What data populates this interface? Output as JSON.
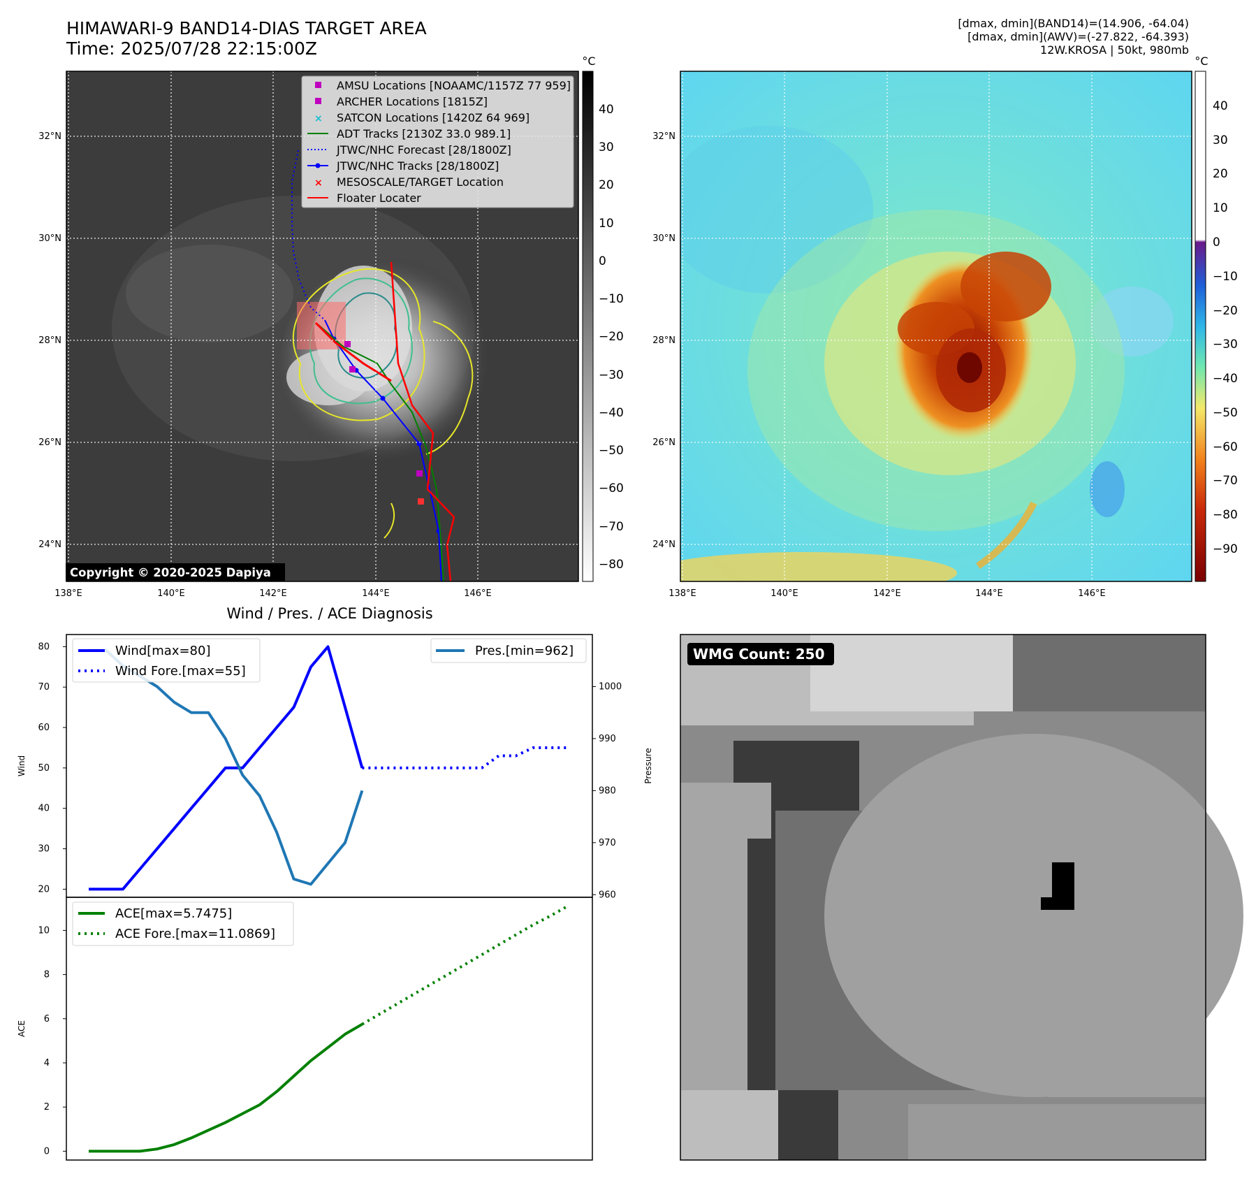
{
  "header": {
    "title_line1": "HIMAWARI-9 BAND14-DIAS TARGET AREA",
    "title_line2": "Time: 2025/07/28 22:15:00Z",
    "info_line1": "[dmax, dmin](BAND14)=(14.906, -64.04)",
    "info_line2": "[dmax, dmin](AWV)=(-27.822, -64.393)",
    "info_line3": "12W.KROSA | 50kt, 980mb"
  },
  "maps": {
    "lat_ticks": [
      "24°N",
      "26°N",
      "28°N",
      "30°N",
      "32°N"
    ],
    "lon_ticks": [
      "138°E",
      "140°E",
      "142°E",
      "144°E",
      "146°E"
    ],
    "unit": "°C",
    "left_colorbar_ticks": [
      "40",
      "30",
      "20",
      "10",
      "0",
      "−10",
      "−20",
      "−30",
      "−40",
      "−50",
      "−60",
      "−70",
      "−80"
    ],
    "right_colorbar_ticks": [
      "40",
      "30",
      "20",
      "10",
      "0",
      "−10",
      "−20",
      "−30",
      "−40",
      "−50",
      "−60",
      "−70",
      "−80",
      "−90"
    ],
    "copyright": "Copyright © 2020-2025 Dapiya",
    "legend": [
      {
        "label": "AMSU Locations [NOAAMC/1157Z 77 959]",
        "marker": "square",
        "color": "#bf00bf"
      },
      {
        "label": "ARCHER Locations [1815Z]",
        "marker": "square",
        "color": "#bf00bf"
      },
      {
        "label": "SATCON Locations [1420Z 64 969]",
        "marker": "x",
        "color": "#17becf"
      },
      {
        "label": "ADT Tracks [2130Z 33.0 989.1]",
        "marker": "line",
        "color": "#008000"
      },
      {
        "label": "JTWC/NHC Forecast [28/1800Z]",
        "marker": "dotted",
        "color": "#0000ff"
      },
      {
        "label": "JTWC/NHC Tracks [28/1800Z]",
        "marker": "line-dot",
        "color": "#0000ff"
      },
      {
        "label": "MESOSCALE/TARGET Location",
        "marker": "x",
        "color": "#ff0000"
      },
      {
        "label": "Floater Locater",
        "marker": "line",
        "color": "#ff0000"
      }
    ]
  },
  "diag": {
    "title": "Wind / Pres. / ACE Diagnosis",
    "wind_ylabel": "Wind",
    "pres_ylabel": "Pressure",
    "ace_ylabel": "ACE",
    "wind_legend": [
      "Wind[max=80]",
      "Wind Fore.[max=55]"
    ],
    "pres_legend": "Pres.[min=962]",
    "ace_legend": [
      "ACE[max=5.7475]",
      "ACE Fore.[max=11.0869]"
    ],
    "wind_ticks": [
      "20",
      "30",
      "40",
      "50",
      "60",
      "70",
      "80"
    ],
    "pres_ticks": [
      "960",
      "970",
      "980",
      "990",
      "1000"
    ],
    "ace_ticks": [
      "0",
      "2",
      "4",
      "6",
      "8",
      "10"
    ]
  },
  "wmg": {
    "label": "WMG Count: 250"
  },
  "chart_data": [
    {
      "type": "line",
      "title": "Wind / Pres. / ACE Diagnosis",
      "ylabel": "Wind",
      "ylim": [
        18,
        83
      ],
      "series": [
        {
          "name": "Wind[max=80]",
          "x": [
            0,
            1,
            2,
            3,
            4,
            5,
            6,
            7,
            8,
            9,
            10,
            11,
            12,
            13,
            14,
            15,
            16
          ],
          "values": [
            20,
            20,
            20,
            25,
            30,
            35,
            40,
            45,
            50,
            50,
            55,
            60,
            65,
            75,
            80,
            65,
            50
          ]
        },
        {
          "name": "Wind Fore.[max=55]",
          "x": [
            16,
            17,
            18,
            19,
            20,
            21,
            22,
            23,
            24,
            25,
            26,
            27,
            28
          ],
          "values": [
            50,
            50,
            50,
            50,
            50,
            50,
            50,
            50,
            53,
            53,
            55,
            55,
            55
          ]
        }
      ]
    },
    {
      "type": "line",
      "ylabel": "Pressure",
      "ylim": [
        959.5,
        1010
      ],
      "series": [
        {
          "name": "Pres.[min=962]",
          "x": [
            0,
            1,
            2,
            3,
            4,
            5,
            6,
            7,
            8,
            9,
            10,
            11,
            12,
            13,
            14,
            15,
            16
          ],
          "values": [
            1007,
            1007,
            1004,
            1002,
            1000,
            997,
            995,
            995,
            990,
            983,
            979,
            972,
            963,
            962,
            966,
            970,
            980
          ]
        }
      ]
    },
    {
      "type": "line",
      "ylabel": "ACE",
      "ylim": [
        -0.4,
        11.5
      ],
      "series": [
        {
          "name": "ACE[max=5.7475]",
          "x": [
            0,
            1,
            2,
            3,
            4,
            5,
            6,
            7,
            8,
            9,
            10,
            11,
            12,
            13,
            14,
            15,
            16
          ],
          "values": [
            0,
            0,
            0,
            0,
            0.1,
            0.3,
            0.6,
            0.95,
            1.3,
            1.7,
            2.1,
            2.7,
            3.4,
            4.1,
            4.7,
            5.3,
            5.75
          ]
        },
        {
          "name": "ACE Fore.[max=11.0869]",
          "x": [
            16,
            17,
            18,
            19,
            20,
            21,
            22,
            23,
            24,
            25,
            26,
            27,
            28
          ],
          "values": [
            5.75,
            6.2,
            6.65,
            7.1,
            7.55,
            8.0,
            8.45,
            8.9,
            9.35,
            9.8,
            10.25,
            10.65,
            11.09
          ]
        }
      ]
    }
  ]
}
